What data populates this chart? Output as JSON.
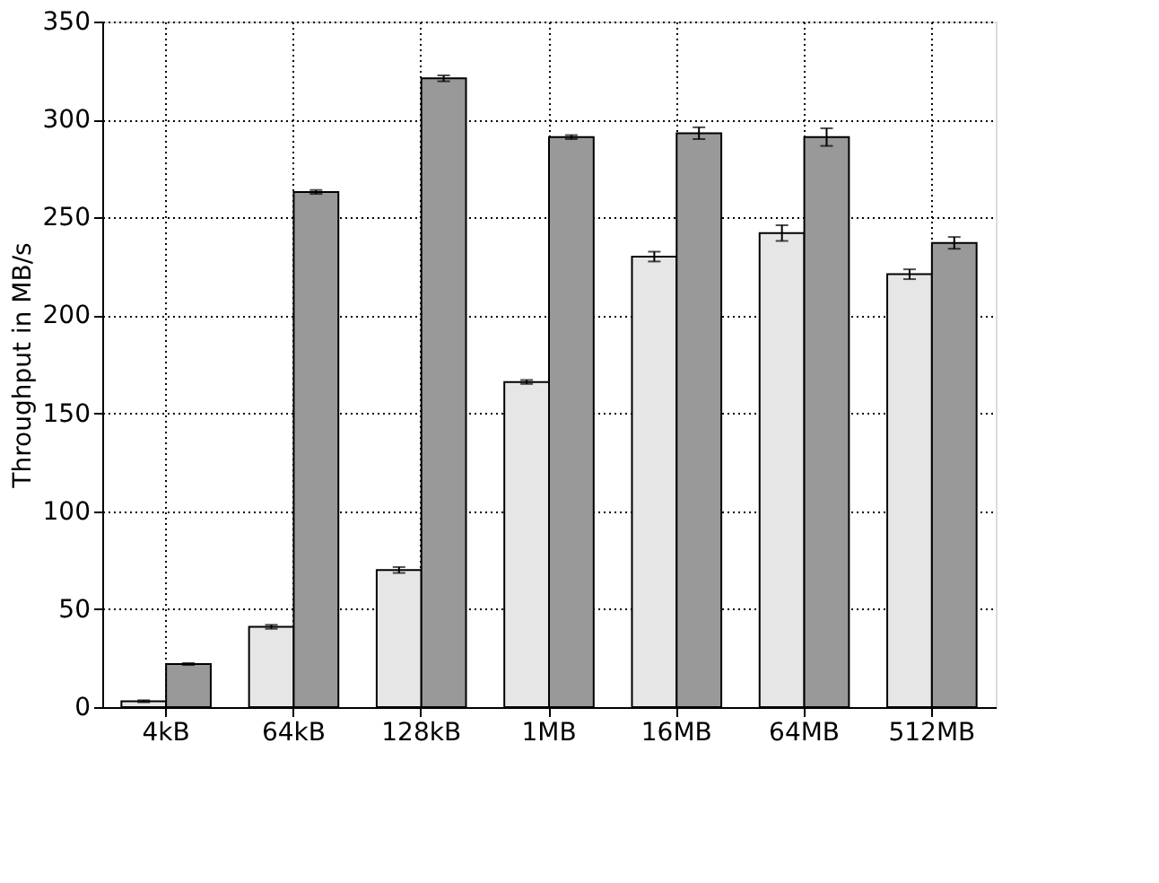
{
  "chart_data": {
    "type": "bar",
    "ylabel": "Throughput in MB/s",
    "categories": [
      "4kB",
      "64kB",
      "128kB",
      "1MB",
      "16MB",
      "64MB",
      "512MB"
    ],
    "series": [
      {
        "color": "#e6e6e6",
        "values": [
          3,
          41,
          70,
          166,
          230,
          242,
          221
        ],
        "errors": [
          0.5,
          1,
          1.5,
          1,
          2.5,
          4,
          2.5
        ]
      },
      {
        "color": "#999999",
        "values": [
          22,
          263,
          321,
          291,
          293,
          291,
          237
        ],
        "errors": [
          0.5,
          1,
          1.5,
          1,
          3,
          4.5,
          3
        ]
      }
    ],
    "ylim": [
      0,
      350
    ],
    "yticks": [
      0,
      50,
      100,
      150,
      200,
      250,
      300,
      350
    ],
    "grid": true
  }
}
